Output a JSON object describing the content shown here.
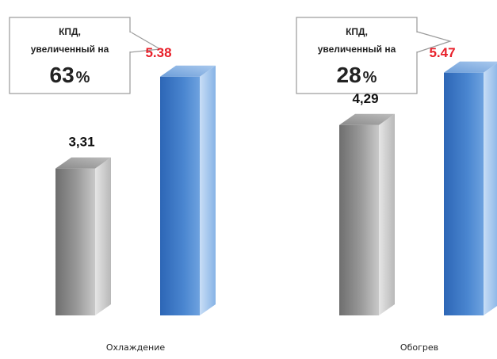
{
  "chart_data": {
    "type": "bar",
    "title": "",
    "xlabel": "",
    "ylabel": "",
    "ylim": [
      0,
      6
    ],
    "grid": false,
    "categories": [
      "Охлаждение",
      "Обогрев"
    ],
    "series": [
      {
        "values": [
          3.31,
          4.29
        ],
        "color": "#8c8c8c",
        "label_color": "#111111"
      },
      {
        "values": [
          5.38,
          5.47
        ],
        "color": "#3d78c4",
        "label_color": "#e8202a"
      }
    ],
    "value_labels": [
      [
        "3,31",
        "4,29"
      ],
      [
        "5.38",
        "5.47"
      ]
    ],
    "annotations": [
      {
        "category": "Охлаждение",
        "line1": "КПД,",
        "line2": "увеличенный на",
        "value": "63",
        "unit": "%"
      },
      {
        "category": "Обогрев",
        "line1": "КПД,",
        "line2": "увеличенный на",
        "value": "28",
        "unit": "%"
      }
    ]
  }
}
